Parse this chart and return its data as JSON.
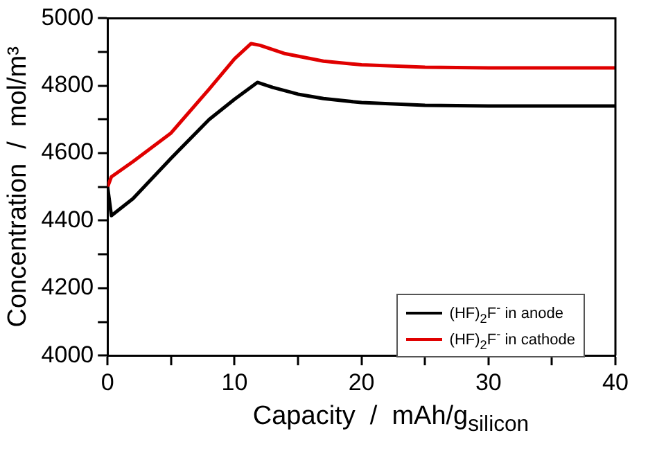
{
  "chart_data": {
    "type": "line",
    "xlabel": "Capacity  /  mAh/g$_{silicon}$",
    "ylabel": "Concentration  /  mol/m³",
    "xlim": [
      0,
      40
    ],
    "xticks": [
      0,
      {
        "value": 5,
        "label": null
      },
      10,
      {
        "value": 15,
        "label": null
      },
      20,
      {
        "value": 25,
        "label": null
      },
      30,
      {
        "value": 35,
        "label": null
      },
      40
    ],
    "ylim": [
      4000,
      5000
    ],
    "yticks": [
      4000,
      {
        "value": 4100,
        "label": null
      },
      4200,
      {
        "value": 4300,
        "label": null
      },
      4400,
      {
        "value": 4500,
        "label": null
      },
      4600,
      {
        "value": 4700,
        "label": null
      },
      4800,
      {
        "value": 4900,
        "label": null
      },
      5000
    ],
    "grid": false,
    "legend": "bottom right",
    "marker": "none",
    "line_style": "solid",
    "series": [
      {
        "name": "(HF)$_{2}$F$^{-}$ in anode",
        "color": "#000000",
        "x": [
          0,
          0.3,
          2,
          5,
          8,
          10,
          11.8,
          13,
          15,
          17,
          20,
          25,
          30,
          40
        ],
        "values": [
          4500,
          4415,
          4465,
          4585,
          4700,
          4760,
          4810,
          4795,
          4775,
          4762,
          4750,
          4742,
          4740,
          4740
        ]
      },
      {
        "name": "(HF)$_{2}$F$^{-}$ in cathode",
        "color": "#e00000",
        "x": [
          0,
          0.3,
          2,
          5,
          8,
          10,
          11.3,
          12,
          14,
          17,
          20,
          25,
          30,
          40
        ],
        "values": [
          4500,
          4530,
          4575,
          4660,
          4790,
          4880,
          4925,
          4920,
          4895,
          4873,
          4862,
          4855,
          4853,
          4853
        ]
      }
    ]
  }
}
